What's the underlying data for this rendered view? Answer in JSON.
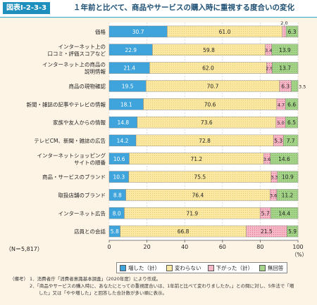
{
  "header": {
    "figure_label": "図表Ⅰ-2-3-3",
    "title": "１年前と比べて、商品やサービスの購入時に重視する度合いの変化"
  },
  "n_label": "（N＝5,817）",
  "notes": {
    "head": "（備考）",
    "lines": [
      "1．消費者庁「消費者意識基本調査」（2020年度）により作成。",
      "2．「商品やサービスの購入時に、あなたにとっての重視度合いは、1年前と比べて変わりましたか。」との問に対し、5件法で「増",
      "　　した」又は「やや増した」と回答した合計数が多い順に表示。"
    ]
  },
  "colors": {
    "increased": "#3fa3dc",
    "unchanged": "#fbe9a3",
    "decreased": "#f6b8c6",
    "no_answer": "#a6d48b"
  },
  "chart_data": {
    "type": "bar",
    "orientation": "horizontal",
    "stacked": true,
    "categories": [
      "価格",
      "インターネット上の\n口コミ・評価スコアなど",
      "インターネット上の商品の\n説明情報",
      "商品の現物確認",
      "新聞・雑誌の記事やテレビの情報",
      "家族や友人からの情報",
      "テレビCM、新聞・雑誌の広告",
      "インターネットショッピング\nサイトの順番",
      "商品・サービスのブランド",
      "取扱店舗のブランド",
      "インターネット広告",
      "店員との会話"
    ],
    "series": [
      {
        "name": "増した（計）",
        "values": [
          30.7,
          22.9,
          21.4,
          19.5,
          18.1,
          14.8,
          14.2,
          10.6,
          10.3,
          8.8,
          8.0,
          5.8
        ]
      },
      {
        "name": "変わらない",
        "values": [
          61.0,
          59.8,
          62.0,
          70.7,
          70.6,
          73.6,
          72.8,
          71.2,
          75.5,
          76.4,
          71.9,
          66.8
        ]
      },
      {
        "name": "下がった（計）",
        "values": [
          2.0,
          3.4,
          2.9,
          6.3,
          4.7,
          5.0,
          5.3,
          3.6,
          3.3,
          3.6,
          5.7,
          21.5
        ]
      },
      {
        "name": "無回答",
        "values": [
          6.3,
          13.9,
          13.7,
          3.5,
          6.6,
          6.5,
          7.7,
          14.6,
          10.9,
          11.2,
          14.4,
          5.9
        ]
      }
    ],
    "xlim": [
      0,
      100
    ],
    "x_ticks": [
      "0",
      "20",
      "40",
      "60",
      "80",
      "100"
    ],
    "x_unit": "（%）",
    "legend_position": "bottom",
    "grid": true
  }
}
